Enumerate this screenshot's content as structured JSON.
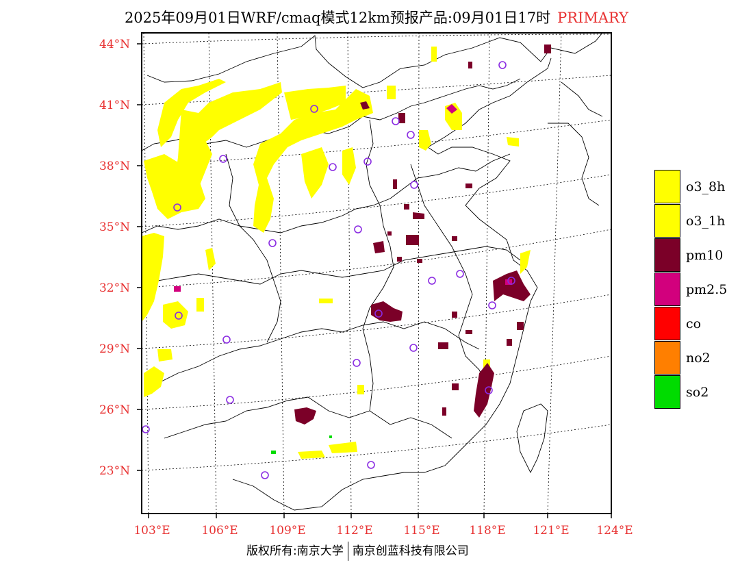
{
  "title": {
    "main": "2025年09月01日WRF/cmaq模式12km预报产品:09月01日17时",
    "tag": "PRIMARY"
  },
  "axes": {
    "lat_labels": [
      "44°N",
      "41°N",
      "38°N",
      "35°N",
      "32°N",
      "29°N",
      "26°N",
      "23°N"
    ],
    "lon_labels": [
      "103°E",
      "106°E",
      "109°E",
      "112°E",
      "115°E",
      "118°E",
      "121°E",
      "124°E"
    ]
  },
  "legend": {
    "items": [
      {
        "label": "o3_8h",
        "color": "#ffff00"
      },
      {
        "label": "o3_1h",
        "color": "#ffff00"
      },
      {
        "label": "pm10",
        "color": "#7b0028"
      },
      {
        "label": "pm2.5",
        "color": "#d2007d"
      },
      {
        "label": "co",
        "color": "#ff0000"
      },
      {
        "label": "no2",
        "color": "#ff7f00"
      },
      {
        "label": "so2",
        "color": "#00dc00"
      }
    ]
  },
  "footer": {
    "left": "版权所有:南京大学",
    "right": "南京创蓝科技有限公司"
  },
  "colors": {
    "o3": "#ffff00",
    "pm10": "#7b0028",
    "pm25": "#d2007d",
    "so2": "#00dc00",
    "station": "#8a2be2",
    "axis_label": "#e83232"
  }
}
